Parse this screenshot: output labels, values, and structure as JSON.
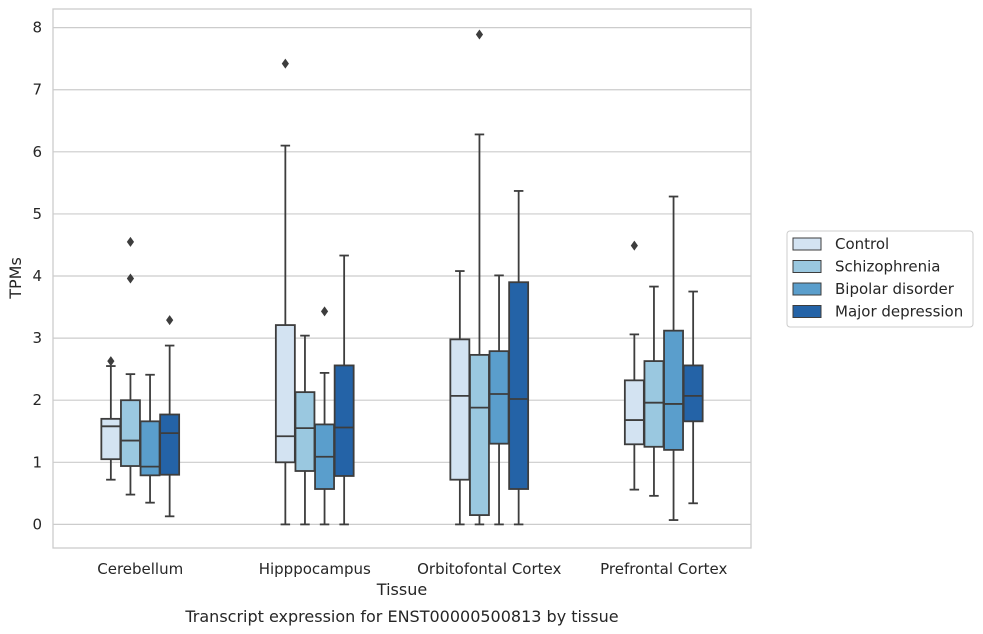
{
  "chart_data": {
    "type": "boxplot",
    "title": "",
    "xlabel": "Tissue",
    "ylabel": "TPMs",
    "caption": "Transcript expression for ENST00000500813 by tissue",
    "ylim": [
      -0.38,
      8.3
    ],
    "yticks": [
      0,
      1,
      2,
      3,
      4,
      5,
      6,
      7,
      8
    ],
    "grid": "horizontal",
    "legend_position": "right",
    "categories": [
      "Cerebellum",
      "Hipppocampus",
      "Orbitofontal Cortex",
      "Prefrontal Cortex"
    ],
    "series": [
      {
        "name": "Control",
        "color": "#d3e3f2",
        "boxes": [
          {
            "whislo": 0.72,
            "q1": 1.05,
            "med": 1.58,
            "q3": 1.7,
            "whishi": 2.55,
            "fliers": [
              2.63
            ]
          },
          {
            "whislo": 0.0,
            "q1": 1.0,
            "med": 1.42,
            "q3": 3.21,
            "whishi": 6.1,
            "fliers": [
              7.42
            ]
          },
          {
            "whislo": 0.0,
            "q1": 0.72,
            "med": 2.07,
            "q3": 2.98,
            "whishi": 4.08,
            "fliers": []
          },
          {
            "whislo": 0.56,
            "q1": 1.29,
            "med": 1.68,
            "q3": 2.32,
            "whishi": 3.06,
            "fliers": [
              4.49
            ]
          }
        ]
      },
      {
        "name": "Schizophrenia",
        "color": "#9ac8e0",
        "boxes": [
          {
            "whislo": 0.48,
            "q1": 0.94,
            "med": 1.35,
            "q3": 2.0,
            "whishi": 2.42,
            "fliers": [
              3.96,
              4.55
            ]
          },
          {
            "whislo": 0.0,
            "q1": 0.86,
            "med": 1.55,
            "q3": 2.13,
            "whishi": 3.04,
            "fliers": []
          },
          {
            "whislo": 0.0,
            "q1": 0.15,
            "med": 1.88,
            "q3": 2.73,
            "whishi": 6.28,
            "fliers": [
              7.89
            ]
          },
          {
            "whislo": 0.46,
            "q1": 1.25,
            "med": 1.96,
            "q3": 2.63,
            "whishi": 3.83,
            "fliers": []
          }
        ]
      },
      {
        "name": "Bipolar disorder",
        "color": "#5a9ecc",
        "boxes": [
          {
            "whislo": 0.35,
            "q1": 0.79,
            "med": 0.93,
            "q3": 1.66,
            "whishi": 2.41,
            "fliers": []
          },
          {
            "whislo": 0.0,
            "q1": 0.57,
            "med": 1.09,
            "q3": 1.61,
            "whishi": 2.44,
            "fliers": [
              3.43
            ]
          },
          {
            "whislo": 0.0,
            "q1": 1.3,
            "med": 2.1,
            "q3": 2.79,
            "whishi": 4.01,
            "fliers": []
          },
          {
            "whislo": 0.07,
            "q1": 1.2,
            "med": 1.94,
            "q3": 3.12,
            "whishi": 5.28,
            "fliers": []
          }
        ]
      },
      {
        "name": "Major depression",
        "color": "#2463a7",
        "boxes": [
          {
            "whislo": 0.13,
            "q1": 0.8,
            "med": 1.47,
            "q3": 1.77,
            "whishi": 2.88,
            "fliers": [
              3.29
            ]
          },
          {
            "whislo": 0.0,
            "q1": 0.78,
            "med": 1.56,
            "q3": 2.56,
            "whishi": 4.33,
            "fliers": []
          },
          {
            "whislo": 0.0,
            "q1": 0.57,
            "med": 2.02,
            "q3": 3.9,
            "whishi": 5.37,
            "fliers": []
          },
          {
            "whislo": 0.34,
            "q1": 1.66,
            "med": 2.07,
            "q3": 2.56,
            "whishi": 3.75,
            "fliers": []
          }
        ]
      }
    ]
  }
}
